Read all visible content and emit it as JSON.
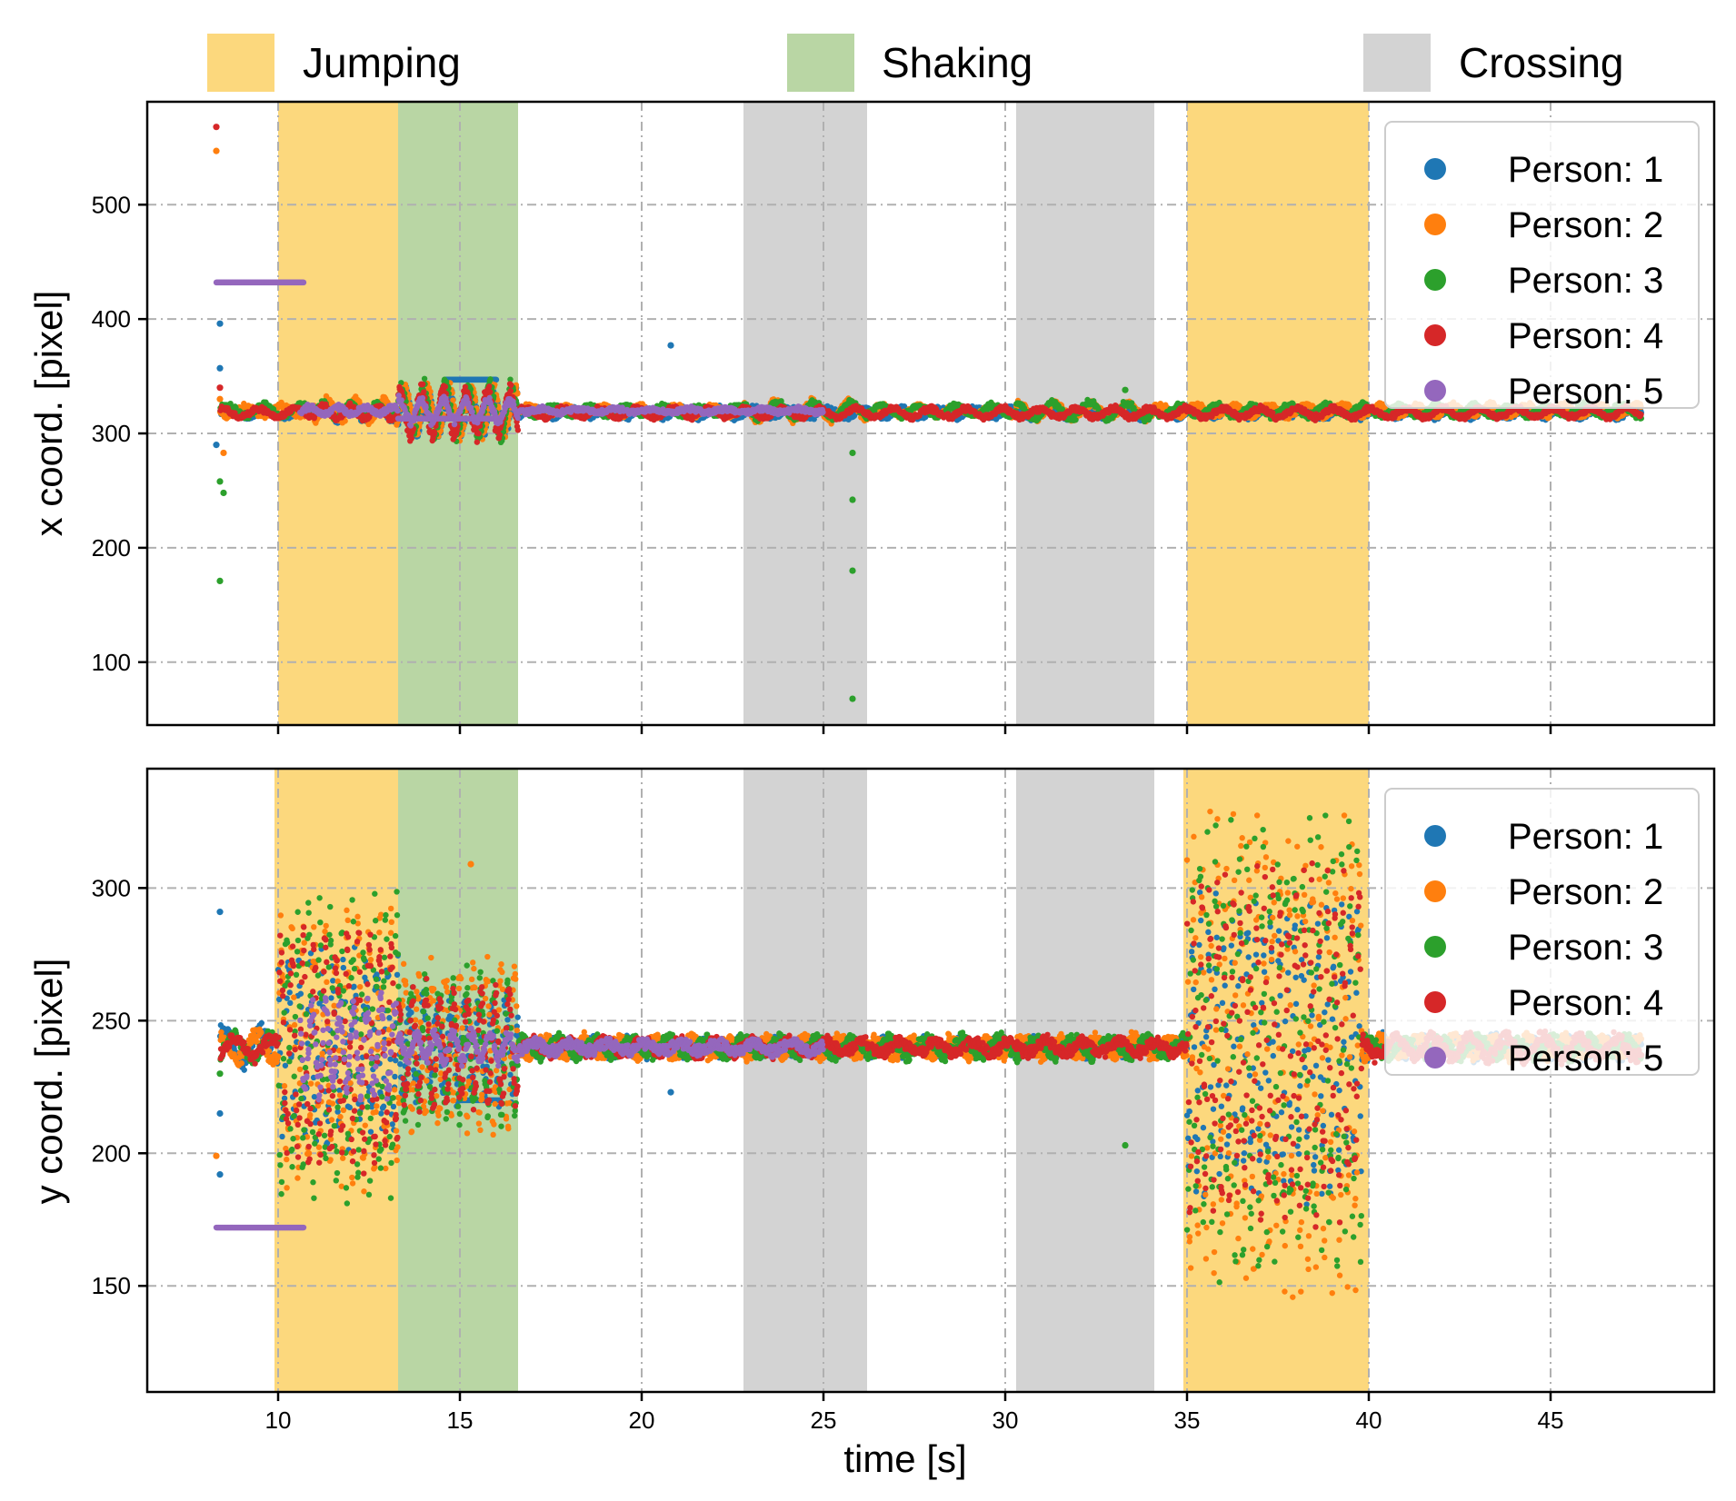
{
  "colors": {
    "jumping": "#fcd87d",
    "shaking": "#b9d6a4",
    "crossing": "#d3d3d3",
    "grid": "#b0b0b0",
    "persons": [
      "#1f77b4",
      "#ff7f0e",
      "#2ca02c",
      "#d62728",
      "#9467bd"
    ]
  },
  "phase_legend": [
    {
      "label": "Jumping",
      "color": "#fcd87d"
    },
    {
      "label": "Shaking",
      "color": "#b9d6a4"
    },
    {
      "label": "Crossing",
      "color": "#d3d3d3"
    }
  ],
  "chart_data": [
    {
      "type": "scatter",
      "xlabel": "",
      "ylabel": "x coord. [pixel]",
      "xlim": [
        6.4,
        49.5
      ],
      "ylim": [
        45,
        590
      ],
      "xticks": [
        10,
        15,
        20,
        25,
        30,
        35,
        40,
        45
      ],
      "yticks": [
        100,
        200,
        300,
        400,
        500
      ],
      "xtick_labels_visible": false,
      "grid": true,
      "legend": "top-right",
      "phases": [
        {
          "kind": "Jumping",
          "start": 10.0,
          "end": 13.3
        },
        {
          "kind": "Shaking",
          "start": 13.3,
          "end": 16.6
        },
        {
          "kind": "Crossing",
          "start": 22.8,
          "end": 26.2
        },
        {
          "kind": "Crossing",
          "start": 30.3,
          "end": 34.1
        },
        {
          "kind": "Jumping",
          "start": 35.0,
          "end": 40.0
        }
      ],
      "series": [
        {
          "name": "Person: 1",
          "baseline": 318,
          "outliers": [
            [
              8.4,
              396
            ],
            [
              8.4,
              357
            ],
            [
              8.3,
              290
            ],
            [
              20.8,
              377
            ]
          ],
          "segments": [
            [
              8.4,
              11.0,
              5,
              3
            ],
            [
              11.0,
              13.3,
              8,
              4
            ],
            [
              13.3,
              16.6,
              22,
              5
            ],
            [
              16.6,
              47.5,
              5,
              3
            ]
          ],
          "flats": [
            [
              14.6,
              16.0,
              347
            ]
          ]
        },
        {
          "name": "Person: 2",
          "baseline": 320,
          "outliers": [
            [
              8.3,
              547
            ],
            [
              8.5,
              283
            ],
            [
              8.4,
              330
            ]
          ],
          "segments": [
            [
              8.4,
              11.0,
              6,
              3
            ],
            [
              11.0,
              13.3,
              12,
              4
            ],
            [
              13.3,
              16.6,
              25,
              5
            ],
            [
              16.6,
              22.8,
              5,
              3
            ],
            [
              22.8,
              26.2,
              10,
              3
            ],
            [
              26.2,
              30.3,
              5,
              3
            ],
            [
              30.3,
              34.1,
              8,
              3
            ],
            [
              34.1,
              47.5,
              6,
              3
            ]
          ],
          "flats": []
        },
        {
          "name": "Person: 3",
          "baseline": 320,
          "outliers": [
            [
              8.4,
              258
            ],
            [
              8.5,
              248
            ],
            [
              8.4,
              171
            ],
            [
              25.8,
              283
            ],
            [
              25.8,
              242
            ],
            [
              25.8,
              180
            ],
            [
              25.8,
              68
            ],
            [
              33.3,
              338
            ]
          ],
          "segments": [
            [
              8.4,
              11.0,
              6,
              3
            ],
            [
              11.0,
              13.3,
              8,
              4
            ],
            [
              13.3,
              16.6,
              28,
              5
            ],
            [
              16.6,
              22.8,
              5,
              3
            ],
            [
              22.8,
              26.2,
              9,
              3
            ],
            [
              26.2,
              30.3,
              6,
              3
            ],
            [
              30.3,
              34.1,
              9,
              3
            ],
            [
              34.1,
              47.5,
              6,
              3
            ]
          ],
          "flats": []
        },
        {
          "name": "Person: 4",
          "baseline": 318,
          "outliers": [
            [
              8.3,
              568
            ],
            [
              8.4,
              340
            ]
          ],
          "segments": [
            [
              8.4,
              11.0,
              5,
              3
            ],
            [
              11.0,
              13.3,
              7,
              4
            ],
            [
              13.3,
              16.6,
              26,
              5
            ],
            [
              16.6,
              47.5,
              5,
              3
            ]
          ],
          "flats": []
        },
        {
          "name": "Person: 5",
          "baseline": 320,
          "outliers": [],
          "segments": [
            [
              10.6,
              13.3,
              4,
              4
            ],
            [
              13.3,
              16.6,
              12,
              5
            ],
            [
              16.6,
              25.0,
              2,
              3
            ]
          ],
          "flats": [
            [
              8.3,
              10.7,
              432
            ],
            [
              13.3,
              16.0,
              313
            ]
          ]
        }
      ]
    },
    {
      "type": "scatter",
      "xlabel": "time [s]",
      "ylabel": "y coord. [pixel]",
      "xlim": [
        6.4,
        49.5
      ],
      "ylim": [
        110,
        345
      ],
      "xticks": [
        10,
        15,
        20,
        25,
        30,
        35,
        40,
        45
      ],
      "yticks": [
        150,
        200,
        250,
        300
      ],
      "xtick_labels_visible": true,
      "grid": true,
      "legend": "top-right",
      "phases": [
        {
          "kind": "Jumping",
          "start": 9.9,
          "end": 13.3
        },
        {
          "kind": "Shaking",
          "start": 13.3,
          "end": 16.6
        },
        {
          "kind": "Crossing",
          "start": 22.8,
          "end": 26.2
        },
        {
          "kind": "Crossing",
          "start": 30.3,
          "end": 34.1
        },
        {
          "kind": "Jumping",
          "start": 34.9,
          "end": 40.0
        }
      ],
      "series": [
        {
          "name": "Person: 1",
          "baseline": 240,
          "outliers": [
            [
              8.4,
              291
            ],
            [
              8.4,
              215
            ],
            [
              8.4,
              192
            ],
            [
              20.8,
              223
            ]
          ],
          "segments": [
            [
              8.4,
              10.0,
              8,
              3
            ],
            [
              10.0,
              13.3,
              38,
              10
            ],
            [
              13.3,
              16.6,
              22,
              8
            ],
            [
              16.6,
              35.0,
              3,
              3
            ],
            [
              35.0,
              39.8,
              60,
              14
            ],
            [
              39.8,
              47.5,
              4,
              3
            ]
          ],
          "flats": [
            [
              15.0,
              16.1,
              220
            ]
          ]
        },
        {
          "name": "Person: 2",
          "baseline": 240,
          "outliers": [
            [
              8.3,
              199
            ],
            [
              15.3,
              309
            ]
          ],
          "segments": [
            [
              8.4,
              10.0,
              6,
              3
            ],
            [
              10.0,
              13.3,
              55,
              10
            ],
            [
              13.3,
              16.6,
              35,
              8
            ],
            [
              16.6,
              35.0,
              4,
              3
            ],
            [
              35.0,
              39.8,
              95,
              14
            ],
            [
              39.8,
              47.5,
              4,
              3
            ]
          ],
          "flats": []
        },
        {
          "name": "Person: 3",
          "baseline": 240,
          "outliers": [
            [
              8.4,
              230
            ],
            [
              33.3,
              203
            ]
          ],
          "segments": [
            [
              8.4,
              10.0,
              6,
              3
            ],
            [
              10.0,
              13.3,
              60,
              10
            ],
            [
              13.3,
              16.6,
              30,
              8
            ],
            [
              16.6,
              35.0,
              4,
              3
            ],
            [
              35.0,
              39.8,
              90,
              14
            ],
            [
              39.8,
              47.5,
              4,
              3
            ]
          ],
          "flats": [
            [
              15.0,
              15.6,
              242
            ]
          ]
        },
        {
          "name": "Person: 4",
          "baseline": 240,
          "outliers": [],
          "segments": [
            [
              8.4,
              10.0,
              5,
              3
            ],
            [
              10.0,
              13.3,
              50,
              10
            ],
            [
              13.3,
              16.6,
              25,
              8
            ],
            [
              16.6,
              35.0,
              3,
              3
            ],
            [
              35.0,
              39.8,
              70,
              14
            ],
            [
              39.8,
              47.5,
              5,
              3
            ]
          ],
          "flats": []
        },
        {
          "name": "Person: 5",
          "baseline": 240,
          "outliers": [],
          "segments": [
            [
              10.6,
              13.3,
              20,
              8
            ],
            [
              13.3,
              16.6,
              6,
              6
            ],
            [
              16.6,
              25.0,
              2,
              3
            ]
          ],
          "flats": [
            [
              8.3,
              10.7,
              172
            ]
          ]
        }
      ]
    }
  ]
}
